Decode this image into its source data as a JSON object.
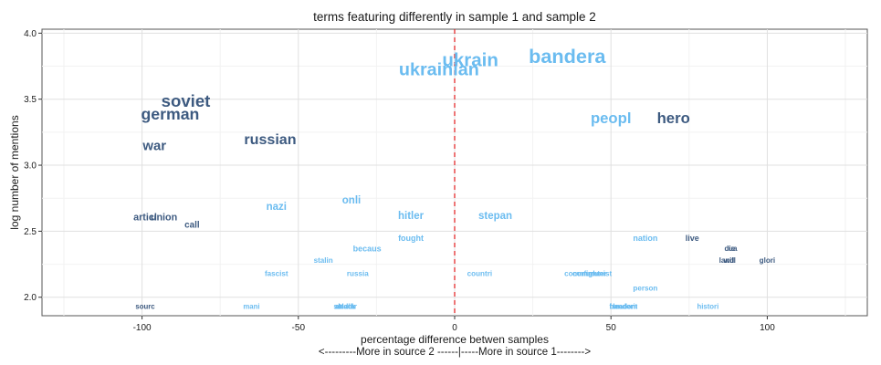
{
  "chart_data": {
    "type": "scatter",
    "title": "terms featuring differently in sample 1 and sample 2",
    "xlabel": "percentage difference betwen samples",
    "xlabel_sub": "<---------More in source 2 ------|-----More in source 1-------->",
    "ylabel": "log number of mentions",
    "xlim": [
      -132,
      132
    ],
    "ylim": [
      1.86,
      4.03
    ],
    "x_ticks": [
      -100,
      -50,
      0,
      50,
      100
    ],
    "x_tick_labels": [
      "-100",
      "-50",
      "0",
      "50",
      "100"
    ],
    "y_ticks": [
      2.0,
      2.5,
      3.0,
      3.5,
      4.0
    ],
    "y_tick_labels": [
      "2.0",
      "2.5",
      "3.0",
      "3.5",
      "4.0"
    ],
    "grid": true,
    "reference_line": {
      "x": 0,
      "color": "#e31a1c",
      "style": "dashed"
    },
    "colors": {
      "dark": "#3d5a80",
      "light": "#6bbcf0"
    },
    "points": [
      {
        "label": "bandera",
        "x": 36,
        "y": 3.83,
        "size": 3.5,
        "tone": "light"
      },
      {
        "label": "ukrain",
        "x": 5,
        "y": 3.8,
        "size": 3.3,
        "tone": "light"
      },
      {
        "label": "ukrainian",
        "x": -5,
        "y": 3.73,
        "size": 3.2,
        "tone": "light"
      },
      {
        "label": "soviet",
        "x": -86,
        "y": 3.49,
        "size": 3.0,
        "tone": "dark"
      },
      {
        "label": "german",
        "x": -91,
        "y": 3.39,
        "size": 2.85,
        "tone": "dark"
      },
      {
        "label": "war",
        "x": -96,
        "y": 3.15,
        "size": 2.4,
        "tone": "dark"
      },
      {
        "label": "russian",
        "x": -59,
        "y": 3.2,
        "size": 2.6,
        "tone": "dark"
      },
      {
        "label": "peopl",
        "x": 50,
        "y": 3.36,
        "size": 2.7,
        "tone": "light"
      },
      {
        "label": "hero",
        "x": 70,
        "y": 3.36,
        "size": 2.7,
        "tone": "dark"
      },
      {
        "label": "onli",
        "x": -33,
        "y": 2.74,
        "size": 1.85,
        "tone": "light"
      },
      {
        "label": "nazi",
        "x": -57,
        "y": 2.69,
        "size": 1.85,
        "tone": "light"
      },
      {
        "label": "hitler",
        "x": -14,
        "y": 2.62,
        "size": 1.85,
        "tone": "light"
      },
      {
        "label": "stepan",
        "x": 13,
        "y": 2.62,
        "size": 1.85,
        "tone": "light"
      },
      {
        "label": "articl",
        "x": -99,
        "y": 2.61,
        "size": 1.75,
        "tone": "dark"
      },
      {
        "label": "union",
        "x": -93,
        "y": 2.61,
        "size": 1.75,
        "tone": "dark"
      },
      {
        "label": "call",
        "x": -84,
        "y": 2.55,
        "size": 1.6,
        "tone": "dark"
      },
      {
        "label": "fought",
        "x": -14,
        "y": 2.45,
        "size": 1.45,
        "tone": "light"
      },
      {
        "label": "nation",
        "x": 61,
        "y": 2.45,
        "size": 1.45,
        "tone": "light"
      },
      {
        "label": "live",
        "x": 76,
        "y": 2.45,
        "size": 1.45,
        "tone": "dark"
      },
      {
        "label": "becaus",
        "x": -28,
        "y": 2.37,
        "size": 1.45,
        "tone": "light"
      },
      {
        "label": "die",
        "x": 88,
        "y": 2.37,
        "size": 1.3,
        "tone": "dark"
      },
      {
        "label": "ua",
        "x": 89,
        "y": 2.37,
        "size": 1.3,
        "tone": "dark"
      },
      {
        "label": "stalin",
        "x": -42,
        "y": 2.28,
        "size": 1.3,
        "tone": "light"
      },
      {
        "label": "land",
        "x": 87,
        "y": 2.28,
        "size": 1.3,
        "tone": "dark"
      },
      {
        "label": "will",
        "x": 88,
        "y": 2.28,
        "size": 1.3,
        "tone": "dark"
      },
      {
        "label": "glori",
        "x": 100,
        "y": 2.28,
        "size": 1.3,
        "tone": "dark"
      },
      {
        "label": "fascist",
        "x": -57,
        "y": 2.18,
        "size": 1.3,
        "tone": "light"
      },
      {
        "label": "russia",
        "x": -31,
        "y": 2.18,
        "size": 1.3,
        "tone": "light"
      },
      {
        "label": "countri",
        "x": 8,
        "y": 2.18,
        "size": 1.3,
        "tone": "light"
      },
      {
        "label": "commun",
        "x": 40,
        "y": 2.18,
        "size": 1.3,
        "tone": "light"
      },
      {
        "label": "fighter",
        "x": 45,
        "y": 2.18,
        "size": 1.3,
        "tone": "light"
      },
      {
        "label": "communist",
        "x": 44,
        "y": 2.18,
        "size": 1.3,
        "tone": "light"
      },
      {
        "label": "person",
        "x": 61,
        "y": 2.07,
        "size": 1.3,
        "tone": "light"
      },
      {
        "label": "sourc",
        "x": -99,
        "y": 1.93,
        "size": 1.25,
        "tone": "dark"
      },
      {
        "label": "mani",
        "x": -65,
        "y": 1.93,
        "size": 1.25,
        "tone": "light"
      },
      {
        "label": "soldier",
        "x": -35,
        "y": 1.93,
        "size": 1.25,
        "tone": "light"
      },
      {
        "label": "attack",
        "x": -35,
        "y": 1.93,
        "size": 1.25,
        "tone": "light"
      },
      {
        "label": "death",
        "x": -35,
        "y": 1.93,
        "size": 1.25,
        "tone": "light"
      },
      {
        "label": "banderit",
        "x": 54,
        "y": 1.93,
        "size": 1.25,
        "tone": "light"
      },
      {
        "label": "freedom",
        "x": 54,
        "y": 1.93,
        "size": 1.25,
        "tone": "light"
      },
      {
        "label": "leader",
        "x": 54,
        "y": 1.93,
        "size": 1.25,
        "tone": "light"
      },
      {
        "label": "histori",
        "x": 81,
        "y": 1.93,
        "size": 1.25,
        "tone": "light"
      }
    ]
  }
}
